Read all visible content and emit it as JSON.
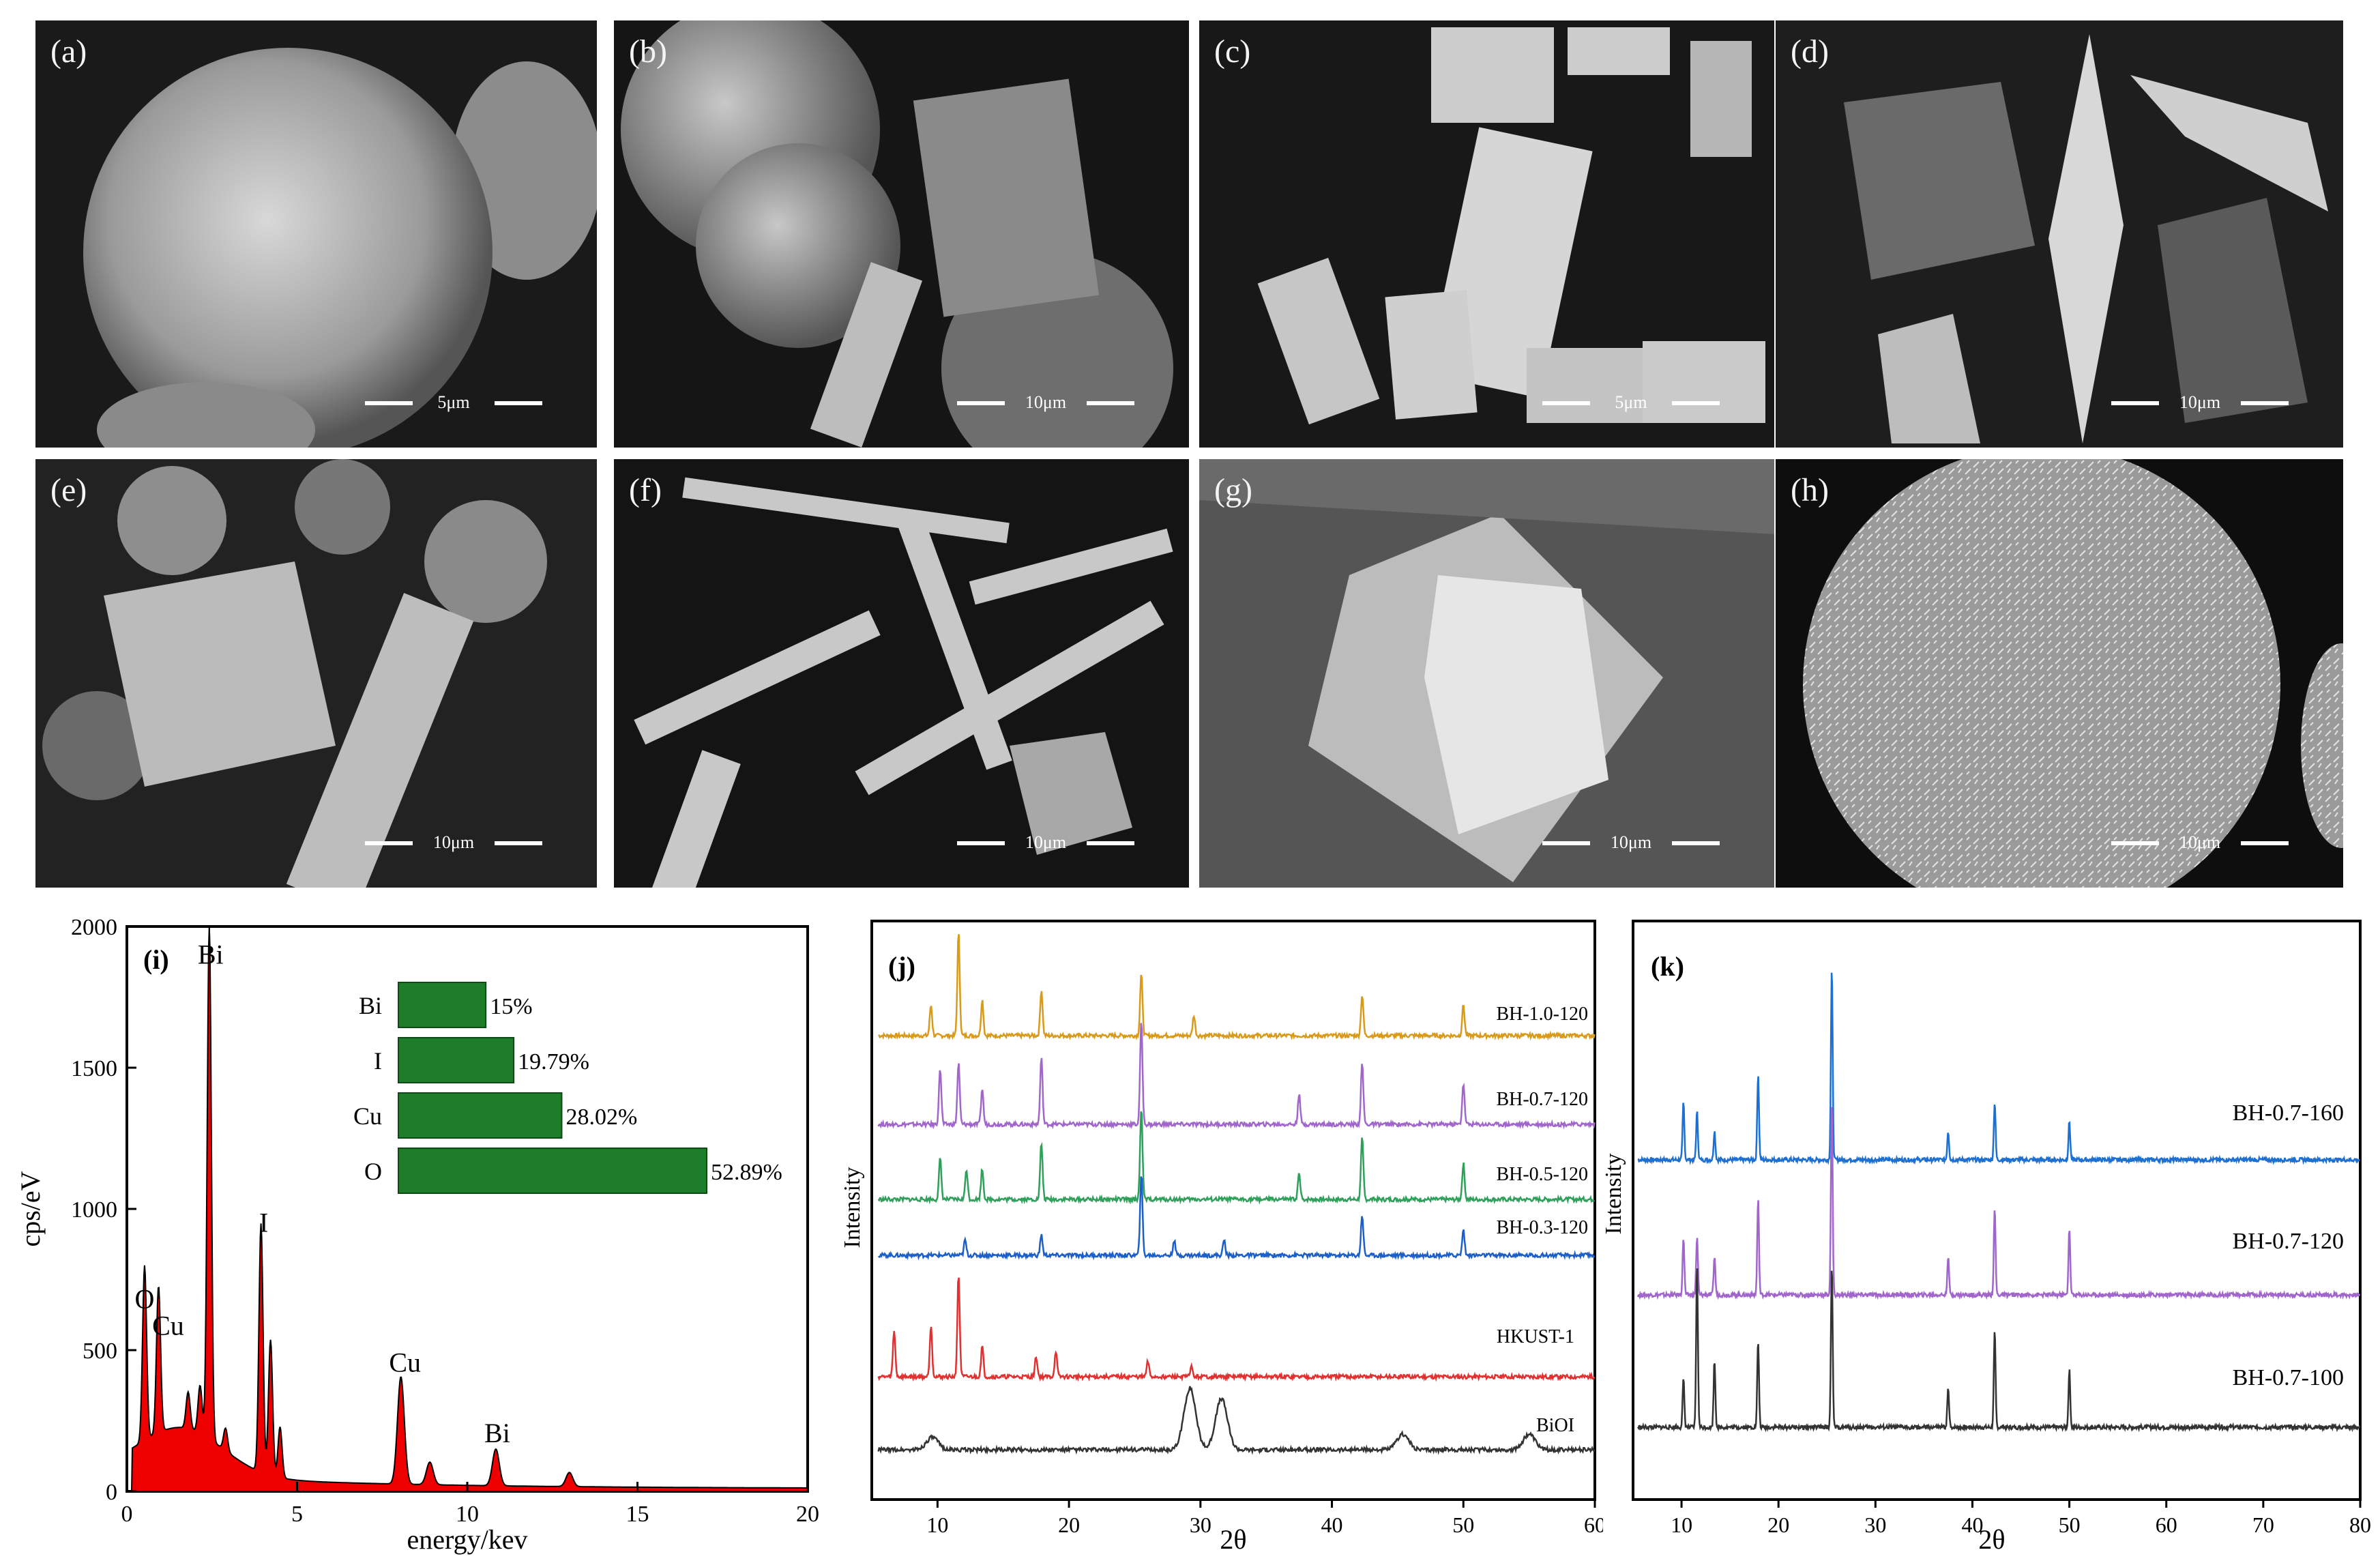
{
  "sem_panels": [
    {
      "label": "(a)",
      "scale": "5μm"
    },
    {
      "label": "(b)",
      "scale": "10μm"
    },
    {
      "label": "(c)",
      "scale": "5μm"
    },
    {
      "label": "(d)",
      "scale": "10μm"
    },
    {
      "label": "(e)",
      "scale": "10μm"
    },
    {
      "label": "(f)",
      "scale": "10μm"
    },
    {
      "label": "(g)",
      "scale": "10μm"
    },
    {
      "label": "(h)",
      "scale": "10μm"
    }
  ],
  "colors": {
    "eds_fill": "#ee0000",
    "bar_green": "#1e7d2a",
    "BH-1.0-120": "#d99a1a",
    "BH-0.7-120": "#a066cc",
    "BH-0.5-120": "#2ea05a",
    "BH-0.3-120": "#1d5fc8",
    "HKUST-1": "#e03030",
    "BiOI": "#333333",
    "BH-0.7-160": "#1d6fd0",
    "BH-0.7-100": "#333333"
  },
  "chart_data": [
    {
      "panel": "(i)",
      "type": "area",
      "xlabel": "energy/kev",
      "ylabel": "cps/eV",
      "xlim": [
        0,
        20
      ],
      "ylim": [
        0,
        2000
      ],
      "xticks": [
        "0",
        "5",
        "10",
        "15",
        "20"
      ],
      "yticks": [
        "0",
        "500",
        "1000",
        "1500",
        "2000"
      ],
      "peaks": [
        {
          "name": "O",
          "x": 0.52,
          "y": 620
        },
        {
          "name": "Cu",
          "x": 0.93,
          "y": 520
        },
        {
          "name": "Bi",
          "x": 2.42,
          "y": 1830
        },
        {
          "name": "I",
          "x": 3.94,
          "y": 880
        },
        {
          "name": "Cu",
          "x": 8.05,
          "y": 380
        },
        {
          "name": "Bi",
          "x": 10.84,
          "y": 130
        }
      ],
      "inset": {
        "type": "bar",
        "categories": [
          "Bi",
          "I",
          "Cu",
          "O"
        ],
        "values": [
          15,
          19.79,
          28.02,
          52.89
        ],
        "labels": [
          "15%",
          "19.79%",
          "28.02%",
          "52.89%"
        ]
      }
    },
    {
      "panel": "(j)",
      "type": "line",
      "xlabel": "2θ",
      "ylabel": "Intensity",
      "xlim": [
        5,
        60
      ],
      "xticks": [
        "10",
        "20",
        "30",
        "40",
        "50",
        "60"
      ],
      "series": [
        {
          "name": "BH-1.0-120",
          "peaks": [
            [
              11.6,
              1.0
            ],
            [
              9.5,
              0.3
            ],
            [
              13.4,
              0.35
            ],
            [
              17.9,
              0.45
            ],
            [
              25.5,
              0.6
            ],
            [
              29.5,
              0.2
            ],
            [
              42.3,
              0.4
            ],
            [
              50.0,
              0.3
            ]
          ]
        },
        {
          "name": "BH-0.7-120",
          "peaks": [
            [
              10.2,
              0.55
            ],
            [
              11.6,
              0.6
            ],
            [
              13.4,
              0.35
            ],
            [
              17.9,
              0.65
            ],
            [
              25.5,
              1.0
            ],
            [
              37.5,
              0.3
            ],
            [
              42.3,
              0.6
            ],
            [
              50.0,
              0.4
            ]
          ]
        },
        {
          "name": "BH-0.5-120",
          "peaks": [
            [
              10.2,
              0.4
            ],
            [
              12.2,
              0.3
            ],
            [
              13.4,
              0.3
            ],
            [
              17.9,
              0.55
            ],
            [
              25.5,
              0.9
            ],
            [
              37.5,
              0.25
            ],
            [
              42.3,
              0.6
            ],
            [
              50.0,
              0.35
            ]
          ]
        },
        {
          "name": "BH-0.3-120",
          "peaks": [
            [
              12.1,
              0.15
            ],
            [
              17.9,
              0.2
            ],
            [
              25.5,
              0.8
            ],
            [
              28.0,
              0.15
            ],
            [
              31.8,
              0.15
            ],
            [
              42.3,
              0.4
            ],
            [
              50.0,
              0.25
            ]
          ]
        },
        {
          "name": "HKUST-1",
          "peaks": [
            [
              6.7,
              0.45
            ],
            [
              9.5,
              0.5
            ],
            [
              11.6,
              1.0
            ],
            [
              13.4,
              0.3
            ],
            [
              17.5,
              0.2
            ],
            [
              19.0,
              0.25
            ],
            [
              26.0,
              0.15
            ],
            [
              29.3,
              0.1
            ]
          ]
        },
        {
          "name": "BiOI",
          "peaks": [
            [
              9.6,
              0.12
            ],
            [
              29.2,
              0.6
            ],
            [
              31.6,
              0.5
            ],
            [
              45.4,
              0.15
            ],
            [
              55.0,
              0.15
            ]
          ]
        }
      ]
    },
    {
      "panel": "(k)",
      "type": "line",
      "xlabel": "2θ",
      "ylabel": "Intensity",
      "xlim": [
        5,
        80
      ],
      "xticks": [
        "10",
        "20",
        "30",
        "40",
        "50",
        "60",
        "70",
        "80"
      ],
      "series": [
        {
          "name": "BH-0.7-160",
          "peaks": [
            [
              10.2,
              0.3
            ],
            [
              11.6,
              0.25
            ],
            [
              13.4,
              0.15
            ],
            [
              17.9,
              0.45
            ],
            [
              25.5,
              1.0
            ],
            [
              37.5,
              0.15
            ],
            [
              42.3,
              0.3
            ],
            [
              50.0,
              0.2
            ]
          ]
        },
        {
          "name": "BH-0.7-120",
          "peaks": [
            [
              10.2,
              0.3
            ],
            [
              11.6,
              0.3
            ],
            [
              13.4,
              0.2
            ],
            [
              17.9,
              0.5
            ],
            [
              25.5,
              1.0
            ],
            [
              37.5,
              0.2
            ],
            [
              42.3,
              0.45
            ],
            [
              50.0,
              0.35
            ]
          ]
        },
        {
          "name": "BH-0.7-100",
          "peaks": [
            [
              10.2,
              0.25
            ],
            [
              11.6,
              0.85
            ],
            [
              13.4,
              0.35
            ],
            [
              17.9,
              0.45
            ],
            [
              25.5,
              0.85
            ],
            [
              37.5,
              0.2
            ],
            [
              42.3,
              0.5
            ],
            [
              50.0,
              0.3
            ]
          ]
        }
      ]
    }
  ],
  "text": {
    "i_label": "(i)",
    "j_label": "(j)",
    "k_label": "(k)"
  }
}
